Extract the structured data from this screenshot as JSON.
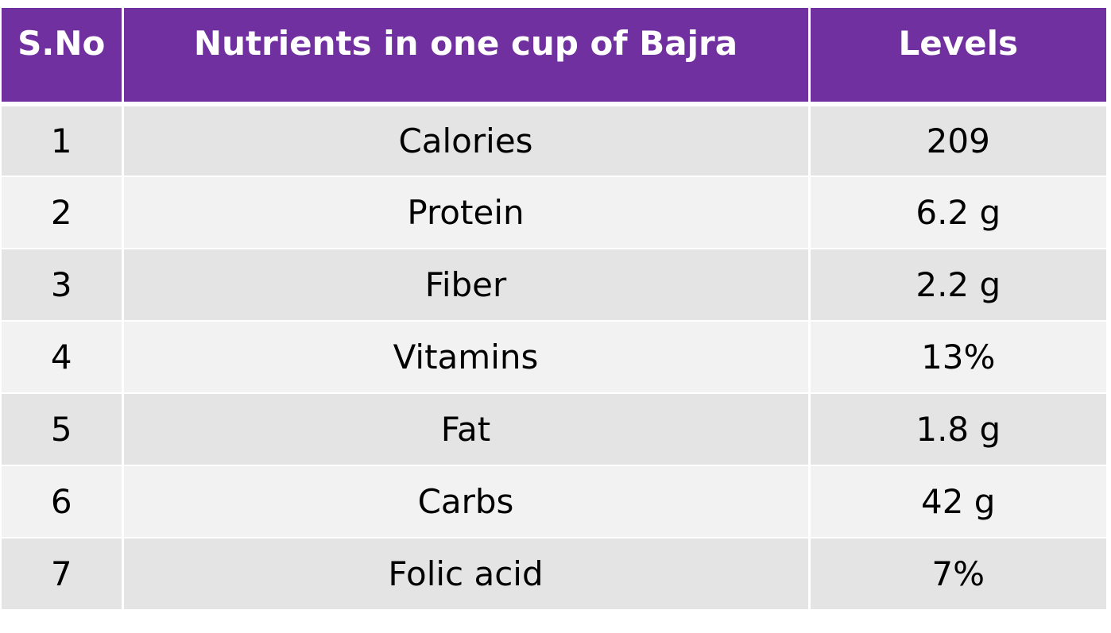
{
  "table": {
    "headers": {
      "sno": "S.No",
      "nutrient": "Nutrients in one cup of Bajra",
      "levels": "Levels"
    },
    "rows": [
      {
        "sno": "1",
        "nutrient": "Calories",
        "level": "209"
      },
      {
        "sno": "2",
        "nutrient": "Protein",
        "level": "6.2 g"
      },
      {
        "sno": "3",
        "nutrient": "Fiber",
        "level": "2.2 g"
      },
      {
        "sno": "4",
        "nutrient": "Vitamins",
        "level": "13%"
      },
      {
        "sno": "5",
        "nutrient": "Fat",
        "level": "1.8 g"
      },
      {
        "sno": "6",
        "nutrient": "Carbs",
        "level": "42 g"
      },
      {
        "sno": "7",
        "nutrient": "Folic acid",
        "level": "7%"
      }
    ]
  },
  "colors": {
    "header_background": "#7030a0",
    "header_text": "#ffffff",
    "row_dark": "#e4e4e4",
    "row_light": "#f2f2f2"
  }
}
